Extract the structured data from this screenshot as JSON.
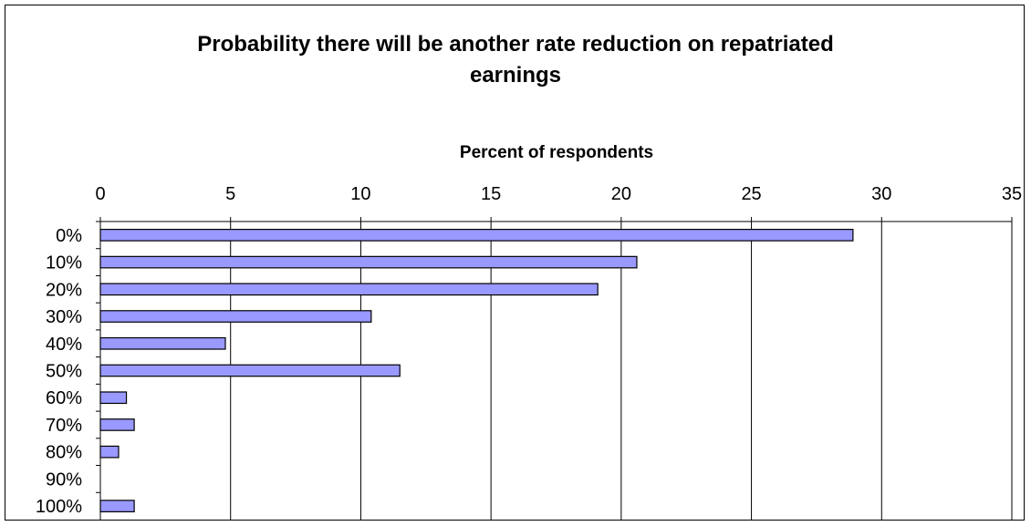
{
  "chart_data": {
    "type": "bar",
    "orientation": "horizontal",
    "title": "Probability there will be another rate reduction on repatriated earnings",
    "xlabel": "Percent of respondents",
    "ylabel": "",
    "xlim": [
      0,
      35
    ],
    "x_ticks": [
      0,
      5,
      10,
      15,
      20,
      25,
      30,
      35
    ],
    "x_axis_position": "top",
    "grid": true,
    "categories": [
      "0%",
      "10%",
      "20%",
      "30%",
      "40%",
      "50%",
      "60%",
      "70%",
      "80%",
      "90%",
      "100%"
    ],
    "values": [
      28.9,
      20.6,
      19.1,
      10.4,
      4.8,
      11.5,
      1.0,
      1.3,
      0.7,
      0,
      1.3
    ],
    "bar_color": "#9999ff",
    "bar_outline": "#000000"
  }
}
